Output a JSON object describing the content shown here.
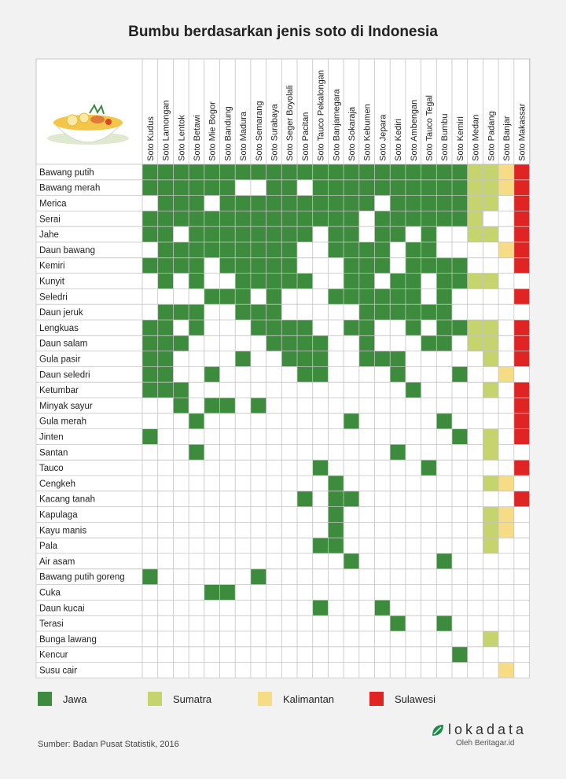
{
  "chart_data": {
    "type": "table",
    "title": "Bumbu berdasarkan jenis soto di Indonesia",
    "columns": [
      "Soto Kudus",
      "Soto Lamongan",
      "Soto Lentok",
      "Soto Betawi",
      "Soto Mie Bogor",
      "Soto Bandung",
      "Soto Madura",
      "Soto Semarang",
      "Soto Surabaya",
      "Soto Seger Boyolali",
      "Soto Pacitan",
      "Soto Tauco Pekalongan",
      "Soto Banjarnegara",
      "Soto Sokaraja",
      "Soto Kebumen",
      "Soto Jepara",
      "Soto Kediri",
      "Soto Ambengan",
      "Soto Tauco Tegal",
      "Soto Bumbu",
      "Soto Kemiri",
      "Soto Medan",
      "Soto Padang",
      "Soto Banjar",
      "Soto Makassar"
    ],
    "column_regions": [
      "Jawa",
      "Jawa",
      "Jawa",
      "Jawa",
      "Jawa",
      "Jawa",
      "Jawa",
      "Jawa",
      "Jawa",
      "Jawa",
      "Jawa",
      "Jawa",
      "Jawa",
      "Jawa",
      "Jawa",
      "Jawa",
      "Jawa",
      "Jawa",
      "Jawa",
      "Jawa",
      "Jawa",
      "Sumatra",
      "Sumatra",
      "Kalimantan",
      "Sulawesi"
    ],
    "rows": [
      {
        "name": "Bawang putih",
        "used": "1111111111111111111111111"
      },
      {
        "name": "Bawang merah",
        "used": "1111110011011111111111111"
      },
      {
        "name": "Merica",
        "used": "0111011111111110111111101"
      },
      {
        "name": "Serai",
        "used": "1111111111111101111111001"
      },
      {
        "name": "Jahe",
        "used": "1101111111101101101001101"
      },
      {
        "name": "Daun bawang",
        "used": "0111111111001111011000011"
      },
      {
        "name": "Kemiri",
        "used": "1111011111000111011110001"
      },
      {
        "name": "Kunyit",
        "used": "0101001111100110110111100"
      },
      {
        "name": "Seledri",
        "used": "0000111010001111110100001"
      },
      {
        "name": "Daun jeruk",
        "used": "0111001110000011111100000"
      },
      {
        "name": "Lengkuas",
        "used": "1101000111100110010111101"
      },
      {
        "name": "Daun salam",
        "used": "1110000011110010001101101"
      },
      {
        "name": "Gula pasir",
        "used": "1100001001110011100000101"
      },
      {
        "name": "Daun seledri",
        "used": "1100100000110000100010010"
      },
      {
        "name": "Ketumbar",
        "used": "1110000000000000010000101"
      },
      {
        "name": "Minyak sayur",
        "used": "0010110100000000000000001"
      },
      {
        "name": "Gula merah",
        "used": "0001000000000100000100001"
      },
      {
        "name": "Jinten",
        "used": "1000000000000000000010101"
      },
      {
        "name": "Santan",
        "used": "0001000000000000100000100"
      },
      {
        "name": "Tauco",
        "used": "0000000000010000001000001"
      },
      {
        "name": "Cengkeh",
        "used": "0000000000001000000000110"
      },
      {
        "name": "Kacang tanah",
        "used": "0000000000101100000000001"
      },
      {
        "name": "Kapulaga",
        "used": "0000000000001000000000110"
      },
      {
        "name": "Kayu manis",
        "used": "0000000000001000000000110"
      },
      {
        "name": "Pala",
        "used": "0000000000011000000000100"
      },
      {
        "name": "Air asam",
        "used": "0000000000000100000100000"
      },
      {
        "name": "Bawang putih goreng",
        "used": "1000000100000000000000000"
      },
      {
        "name": "Cuka",
        "used": "0000110000000000000000000"
      },
      {
        "name": "Daun kucai",
        "used": "0000000000010001000000000"
      },
      {
        "name": "Terasi",
        "used": "0000000000000000100100000"
      },
      {
        "name": "Bunga lawang",
        "used": "0000000000000000000000100"
      },
      {
        "name": "Kencur",
        "used": "0000000000000000000010000"
      },
      {
        "name": "Susu cair",
        "used": "0000000000000000000000010"
      }
    ]
  },
  "legend": [
    {
      "label": "Jawa",
      "color": "#3d8c3d"
    },
    {
      "label": "Sumatra",
      "color": "#c6d46e"
    },
    {
      "label": "Kalimantan",
      "color": "#f7dc86"
    },
    {
      "label": "Sulawesi",
      "color": "#e02424"
    }
  ],
  "source": "Sumber:  Badan Pusat Statistik, 2016",
  "brand": {
    "name": "lokadata",
    "byline": "Oleh Beritagar.id",
    "icon": "leaf-logo-icon"
  }
}
